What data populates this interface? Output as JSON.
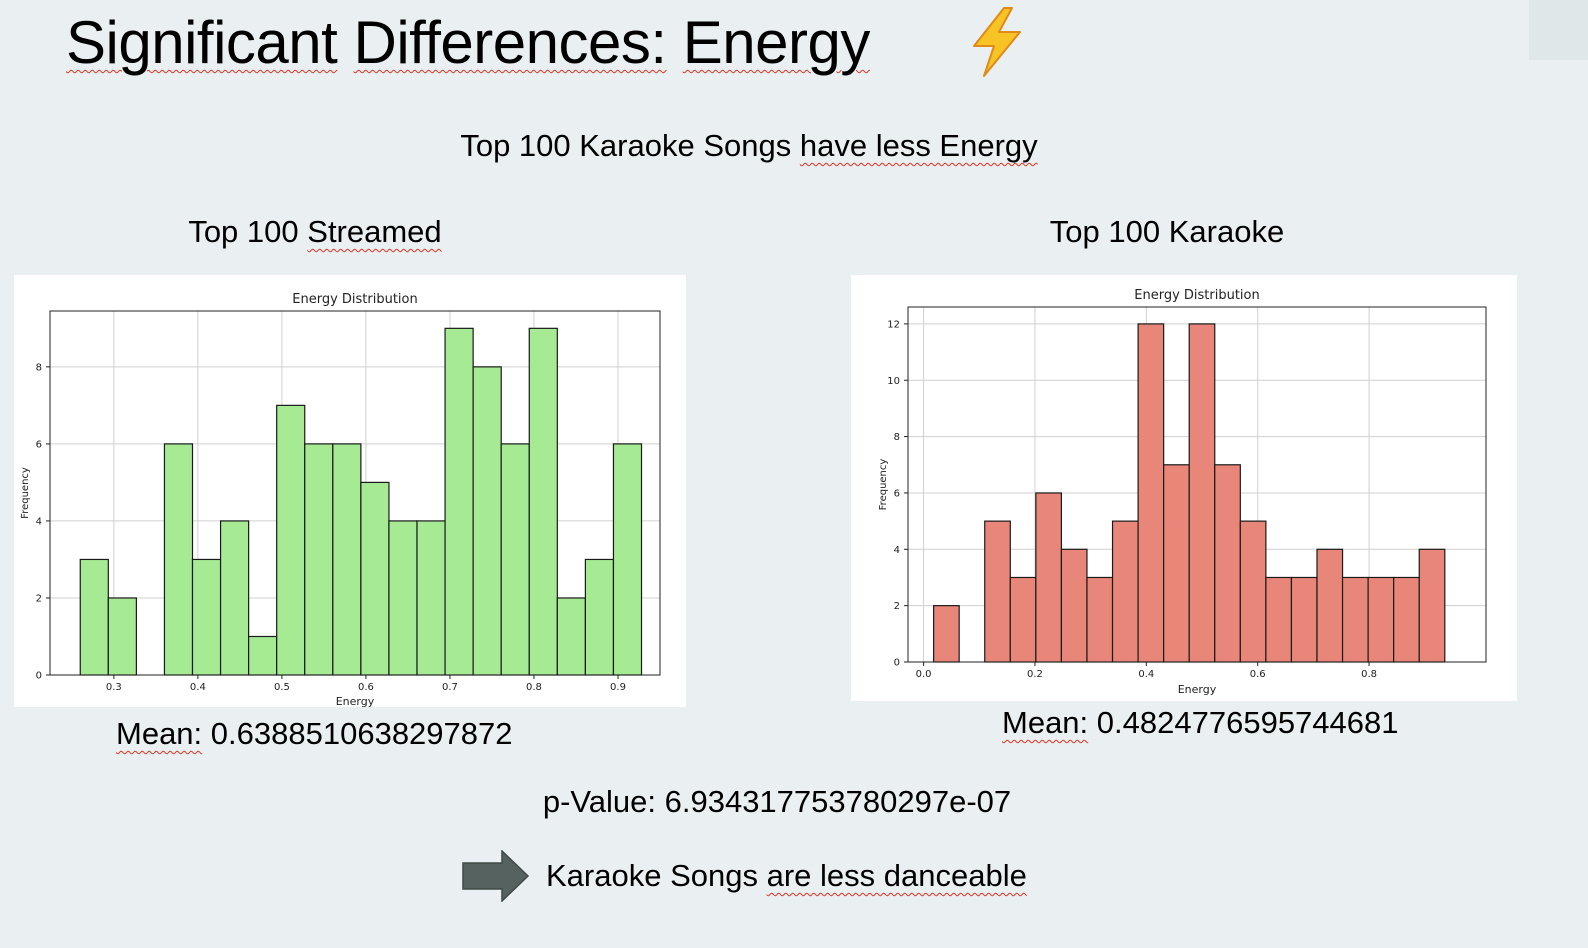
{
  "slide": {
    "title_part1": "Significant",
    "title_part2": "Differences:",
    "title_part3": "Energy",
    "title_icon": "lightning-bolt-icon",
    "subtitle_part1": "Top 100 Karaoke Songs",
    "subtitle_part2": "have less Energy",
    "left_panel_title_part1": "Top 100",
    "left_panel_title_part2": "Streamed",
    "right_panel_title": "Top 100 Karaoke",
    "mean_label": "Mean:",
    "left_mean_value": "0.6388510638297872",
    "right_mean_value": "0.4824776595744681",
    "pvalue_text": "p-Value: 6.934317753780297e-07",
    "arrow_icon": "right-arrow-icon",
    "conclusion_part1": "Karaoke Songs",
    "conclusion_part2": "are less danceable"
  },
  "colors": {
    "background": "#eaf0f2",
    "streamed_bar": "#a6ea94",
    "karaoke_bar": "#e9867a",
    "bar_edge": "#1a1a1a",
    "arrow": "#56625f",
    "bolt": "#f7c325"
  },
  "chart_data": [
    {
      "type": "bar",
      "title": "Energy Distribution",
      "xlabel": "Energy",
      "ylabel": "Frequency",
      "bin_start": 0.26,
      "bin_width": 0.0334,
      "values": [
        3,
        2,
        0,
        6,
        3,
        4,
        1,
        7,
        6,
        6,
        5,
        4,
        4,
        9,
        8,
        6,
        9,
        2,
        3,
        6
      ],
      "xlim": [
        0.224,
        0.95
      ],
      "ylim": [
        0,
        9.45
      ],
      "xticks": [
        0.3,
        0.4,
        0.5,
        0.6,
        0.7,
        0.8,
        0.9
      ],
      "yticks": [
        0,
        2,
        4,
        6,
        8
      ],
      "grid": true,
      "color": "#a6ea94"
    },
    {
      "type": "bar",
      "title": "Energy Distribution",
      "xlabel": "Energy",
      "ylabel": "Frequency",
      "bin_start": 0.018,
      "bin_width": 0.0459,
      "values": [
        2,
        0,
        5,
        3,
        6,
        4,
        3,
        5,
        12,
        7,
        12,
        7,
        5,
        3,
        3,
        4,
        3,
        3,
        3,
        4
      ],
      "xlim": [
        -0.028,
        1.01
      ],
      "ylim": [
        0,
        12.6
      ],
      "xticks": [
        0.0,
        0.2,
        0.4,
        0.6,
        0.8
      ],
      "yticks": [
        0,
        2,
        4,
        6,
        8,
        10,
        12
      ],
      "grid": true,
      "color": "#e9867a"
    }
  ]
}
